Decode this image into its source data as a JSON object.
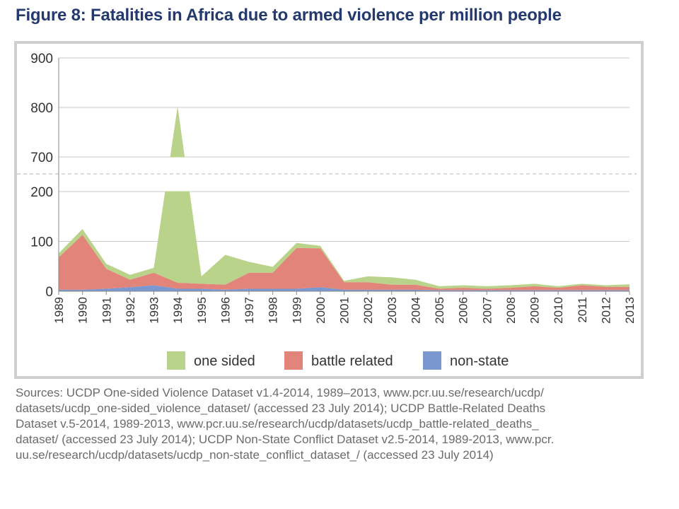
{
  "title": "Figure 8: Fatalities in Africa due to armed violence per million people",
  "sources": [
    "Sources: UCDP One-sided Violence Dataset v1.4-2014, 1989–2013, www.pcr.uu.se/research/ucdp/",
    "datasets/ucdp_one-sided_violence_dataset/ (accessed 23 July 2014); UCDP Battle-Related Deaths",
    "Dataset v.5-2014, 1989-2013, www.pcr.uu.se/research/ucdp/datasets/ucdp_battle-related_deaths_",
    "dataset/ (accessed 23 July 2014); UCDP Non-State Conflict Dataset v2.5-2014, 1989-2013, www.pcr.",
    "uu.se/research/ucdp/datasets/ucdp_non-state_conflict_dataset_/ (accessed 23 July 2014)"
  ],
  "chart_data": {
    "type": "area",
    "stacked": true,
    "broken_axis": {
      "lower_range": [
        0,
        200
      ],
      "upper_range": [
        700,
        900
      ]
    },
    "y_ticks": [
      0,
      100,
      200,
      700,
      800,
      900
    ],
    "categories": [
      "1989",
      "1990",
      "1991",
      "1992",
      "1993",
      "1994",
      "1995",
      "1996",
      "1997",
      "1998",
      "1999",
      "2000",
      "2001",
      "2002",
      "2003",
      "2004",
      "2005",
      "2006",
      "2007",
      "2008",
      "2009",
      "2010",
      "2011",
      "2012",
      "2013"
    ],
    "series": [
      {
        "name": "one sided",
        "color": "#b9d48a",
        "values": [
          8,
          12,
          10,
          10,
          10,
          785,
          15,
          60,
          22,
          12,
          10,
          5,
          3,
          12,
          15,
          10,
          5,
          5,
          5,
          5,
          5,
          3,
          3,
          3,
          5
        ]
      },
      {
        "name": "battle related",
        "color": "#e28479",
        "values": [
          65,
          110,
          40,
          15,
          25,
          12,
          10,
          10,
          32,
          32,
          82,
          78,
          15,
          15,
          10,
          10,
          3,
          5,
          3,
          5,
          8,
          5,
          10,
          7,
          7
        ]
      },
      {
        "name": "non-state",
        "color": "#7a98cf",
        "values": [
          3,
          3,
          5,
          8,
          12,
          5,
          5,
          3,
          5,
          5,
          5,
          8,
          3,
          3,
          3,
          3,
          2,
          2,
          2,
          2,
          2,
          2,
          2,
          2,
          2
        ]
      }
    ],
    "legend_position": "bottom",
    "grid": true
  }
}
